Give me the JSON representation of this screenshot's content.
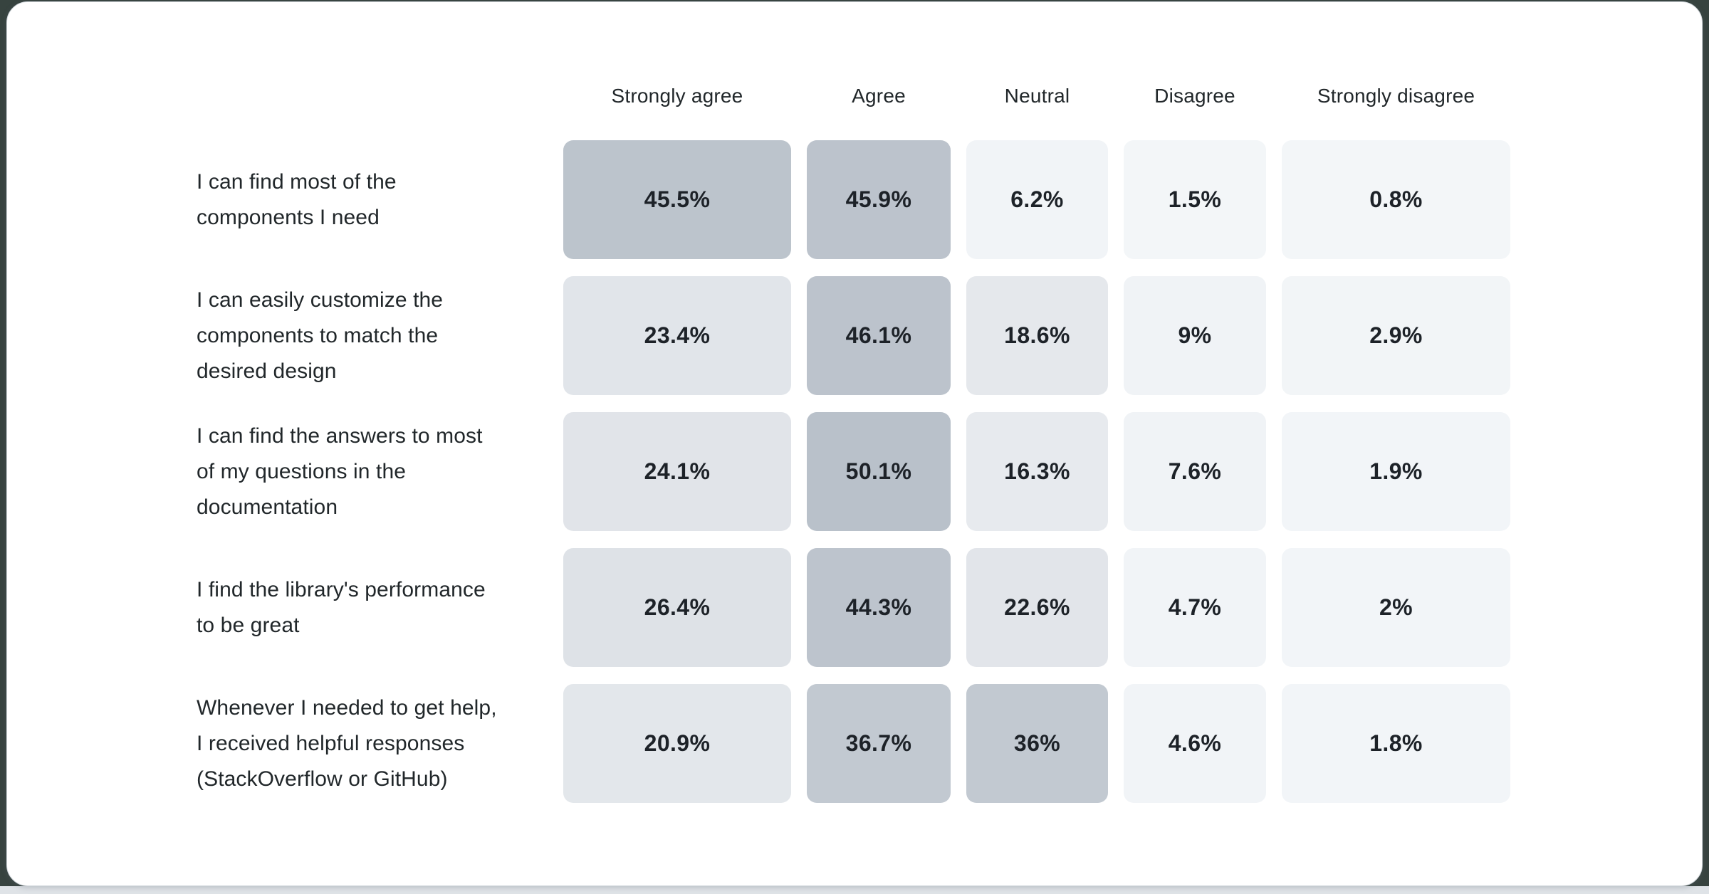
{
  "page": {
    "background_color": "#37433f",
    "bottom_strip_color": "#dfe3e7",
    "card_background": "#ffffff",
    "card_border_color": "#d3d8dd"
  },
  "chart_data": {
    "type": "heatmap",
    "title": "",
    "legend": "none",
    "grid": "off",
    "columns": [
      "Strongly agree",
      "Agree",
      "Neutral",
      "Disagree",
      "Strongly disagree"
    ],
    "rows": [
      {
        "label": "I can find most of the\ncomponents I need",
        "values": [
          45.5,
          45.9,
          6.2,
          1.5,
          0.8
        ],
        "display": [
          "45.5%",
          "45.9%",
          "6.2%",
          "1.5%",
          "0.8%"
        ]
      },
      {
        "label": "I can easily customize the\ncomponents to match the\ndesired design",
        "values": [
          23.4,
          46.1,
          18.6,
          9,
          2.9
        ],
        "display": [
          "23.4%",
          "46.1%",
          "18.6%",
          "9%",
          "2.9%"
        ]
      },
      {
        "label": "I can find the answers to most\nof my questions in the\ndocumentation",
        "values": [
          24.1,
          50.1,
          16.3,
          7.6,
          1.9
        ],
        "display": [
          "24.1%",
          "50.1%",
          "16.3%",
          "7.6%",
          "1.9%"
        ]
      },
      {
        "label": "I find the library's performance\nto be great",
        "values": [
          26.4,
          44.3,
          22.6,
          4.7,
          2
        ],
        "display": [
          "26.4%",
          "44.3%",
          "22.6%",
          "4.7%",
          "2%"
        ]
      },
      {
        "label": "Whenever I needed to get help,\nI received helpful responses\n(StackOverflow or GitHub)",
        "values": [
          20.9,
          36.7,
          36,
          4.6,
          1.8
        ],
        "display": [
          "20.9%",
          "36.7%",
          "36%",
          "4.6%",
          "1.8%"
        ]
      }
    ],
    "color_scale": {
      "stops": [
        {
          "value": 0,
          "color": "#f3f6f8"
        },
        {
          "value": 9,
          "color": "#f0f3f6"
        },
        {
          "value": 16,
          "color": "#e7eaee"
        },
        {
          "value": 26,
          "color": "#dfe3e8"
        },
        {
          "value": 36,
          "color": "#c2c9d1"
        },
        {
          "value": 50.1,
          "color": "#b9c1ca"
        }
      ]
    },
    "header_text_color": "#21272a",
    "label_text_color": "#21272a",
    "value_text_color": "#1d2228"
  }
}
